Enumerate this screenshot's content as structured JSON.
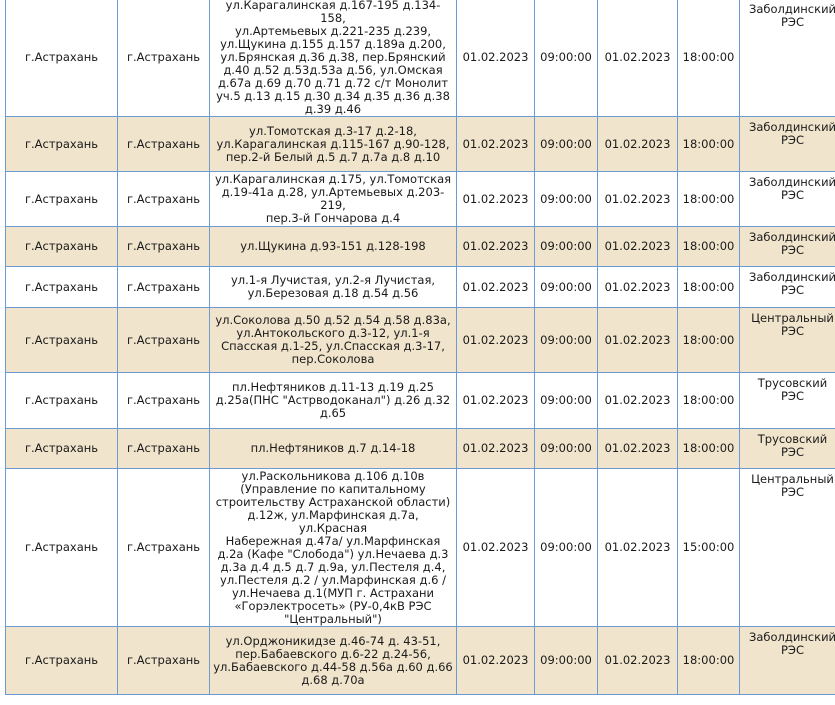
{
  "rows": [
    {
      "locality": "г.Астрахань",
      "settlement": "г.Астрахань",
      "address": "ул.Карагалинская д.167-195 д.134-158,\nул.Артемьевых д.221-235 д.239,\nул.Щукина д.155 д.157 д.189а д.200,\nул.Брянская д.36 д.38, пер.Брянский\nд.40 д.52 д.53д.53а д.56, ул.Омская\nд.67а д.69 д.70 д.71 д.72 с/т Монолит\nуч.5 д.13 д.15 д.30 д.34 д.35 д.36 д.38\nд.39 д.46",
      "date_start": "01.02.2023",
      "time_start": "09:00:00",
      "date_end": "01.02.2023",
      "time_end": "18:00:00",
      "res": "Заболдинский\nРЭС"
    },
    {
      "locality": "г.Астрахань",
      "settlement": "г.Астрахань",
      "address": "ул.Томотская д.3-17 д.2-18,\nул.Карагалинская д.115-167 д.90-128,\nпер.2-й Белый д.5 д.7 д.7а д.8 д.10",
      "date_start": "01.02.2023",
      "time_start": "09:00:00",
      "date_end": "01.02.2023",
      "time_end": "18:00:00",
      "res": "Заболдинский\nРЭС"
    },
    {
      "locality": "г.Астрахань",
      "settlement": "г.Астрахань",
      "address": "ул.Карагалинская д.175, ул.Томотская\nд.19-41а д.28, ул.Артемьевых д.203-219,\nпер.3-й Гончарова д.4",
      "date_start": "01.02.2023",
      "time_start": "09:00:00",
      "date_end": "01.02.2023",
      "time_end": "18:00:00",
      "res": "Заболдинский\nРЭС"
    },
    {
      "locality": "г.Астрахань",
      "settlement": "г.Астрахань",
      "address": "ул.Щукина д.93-151 д.128-198",
      "date_start": "01.02.2023",
      "time_start": "09:00:00",
      "date_end": "01.02.2023",
      "time_end": "18:00:00",
      "res": "Заболдинский\nРЭС"
    },
    {
      "locality": "г.Астрахань",
      "settlement": "г.Астрахань",
      "address": "ул.1-я Лучистая, ул.2-я Лучистая,\nул.Березовая д.18 д.54 д.56",
      "date_start": "01.02.2023",
      "time_start": "09:00:00",
      "date_end": "01.02.2023",
      "time_end": "18:00:00",
      "res": "Заболдинский\nРЭС"
    },
    {
      "locality": "г.Астрахань",
      "settlement": "г.Астрахань",
      "address": "ул.Соколова д.50 д.52 д.54 д.58 д.83а,\nул.Антокольского д.3-12, ул.1-я\nСпасская д.1-25, ул.Спасская д.3-17,\nпер.Соколова",
      "date_start": "01.02.2023",
      "time_start": "09:00:00",
      "date_end": "01.02.2023",
      "time_end": "18:00:00",
      "res": "Центральный\nРЭС"
    },
    {
      "locality": "г.Астрахань",
      "settlement": "г.Астрахань",
      "address": "пл.Нефтяников д.11-13 д.19 д.25\nд.25а(ПНС \"Астрводоканал\") д.26 д.32\nд.65",
      "date_start": "01.02.2023",
      "time_start": "09:00:00",
      "date_end": "01.02.2023",
      "time_end": "18:00:00",
      "res": "Трусовский\nРЭС"
    },
    {
      "locality": "г.Астрахань",
      "settlement": "г.Астрахань",
      "address": "пл.Нефтяников д.7 д.14-18",
      "date_start": "01.02.2023",
      "time_start": "09:00:00",
      "date_end": "01.02.2023",
      "time_end": "18:00:00",
      "res": "Трусовский\nРЭС"
    },
    {
      "locality": "г.Астрахань",
      "settlement": "г.Астрахань",
      "address": "ул.Раскольникова д.106 д.10в\n(Управление по капитальному\nстроительству Астраханской области)\nд.12ж, ул.Марфинская д.7а, ул.Красная\nНабережная д.47а/ ул.Марфинская\nд.2а (Кафе \"Слобода\") ул.Нечаева д.3\nд.3а д.4 д.5 д.7 д.9а, ул.Пестеля д.4,\nул.Пестеля д.2 / ул.Марфинская д.6 /\nул.Нечаева д.1(МУП г. Астрахани\n«Горэлектросеть» (РУ-0,4кВ РЭС\n\"Центральный\")",
      "date_start": "01.02.2023",
      "time_start": "09:00:00",
      "date_end": "01.02.2023",
      "time_end": "15:00:00",
      "res": "Центральный\nРЭС"
    },
    {
      "locality": "г.Астрахань",
      "settlement": "г.Астрахань",
      "address": "ул.Орджоникидзе д.46-74 д. 43-51,\nпер.Бабаевского д.6-22 д.24-56,\nул.Бабаевского д.44-58 д.56а д.60 д.66\nд.68 д.70а",
      "date_start": "01.02.2023",
      "time_start": "09:00:00",
      "date_end": "01.02.2023",
      "time_end": "18:00:00",
      "res": "Заболдинский\nРЭС"
    }
  ]
}
